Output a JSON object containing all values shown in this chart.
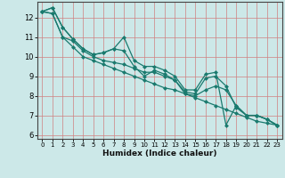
{
  "xlabel": "Humidex (Indice chaleur)",
  "background_color": "#cce8e8",
  "grid_color_major": "#e8a0a0",
  "line_color": "#1a7a6e",
  "xlim": [
    -0.5,
    23.5
  ],
  "ylim": [
    5.8,
    12.8
  ],
  "yticks": [
    6,
    7,
    8,
    9,
    10,
    11,
    12
  ],
  "xticks": [
    0,
    1,
    2,
    3,
    4,
    5,
    6,
    7,
    8,
    9,
    10,
    11,
    12,
    13,
    14,
    15,
    16,
    17,
    18,
    19,
    20,
    21,
    22,
    23
  ],
  "series": [
    [
      12.3,
      12.5,
      11.5,
      10.9,
      10.4,
      10.1,
      10.2,
      10.4,
      11.0,
      9.8,
      9.5,
      9.5,
      9.3,
      9.0,
      8.3,
      8.3,
      9.1,
      9.2,
      6.5,
      7.5,
      7.0,
      7.0,
      6.8,
      6.5
    ],
    [
      12.3,
      12.5,
      11.5,
      10.9,
      10.4,
      10.1,
      10.2,
      10.4,
      10.3,
      9.5,
      9.0,
      9.3,
      9.1,
      8.8,
      8.2,
      8.1,
      8.9,
      9.0,
      8.5,
      7.4,
      7.0,
      7.0,
      6.8,
      6.5
    ],
    [
      12.3,
      12.2,
      11.0,
      10.8,
      10.3,
      10.0,
      9.8,
      9.7,
      9.6,
      9.4,
      9.2,
      9.2,
      9.0,
      8.8,
      8.1,
      8.0,
      8.3,
      8.5,
      8.3,
      7.5,
      7.0,
      7.0,
      6.8,
      6.5
    ],
    [
      12.3,
      12.2,
      11.0,
      10.5,
      10.0,
      9.8,
      9.6,
      9.4,
      9.2,
      9.0,
      8.8,
      8.6,
      8.4,
      8.3,
      8.1,
      7.9,
      7.7,
      7.5,
      7.3,
      7.1,
      6.9,
      6.7,
      6.6,
      6.5
    ]
  ]
}
